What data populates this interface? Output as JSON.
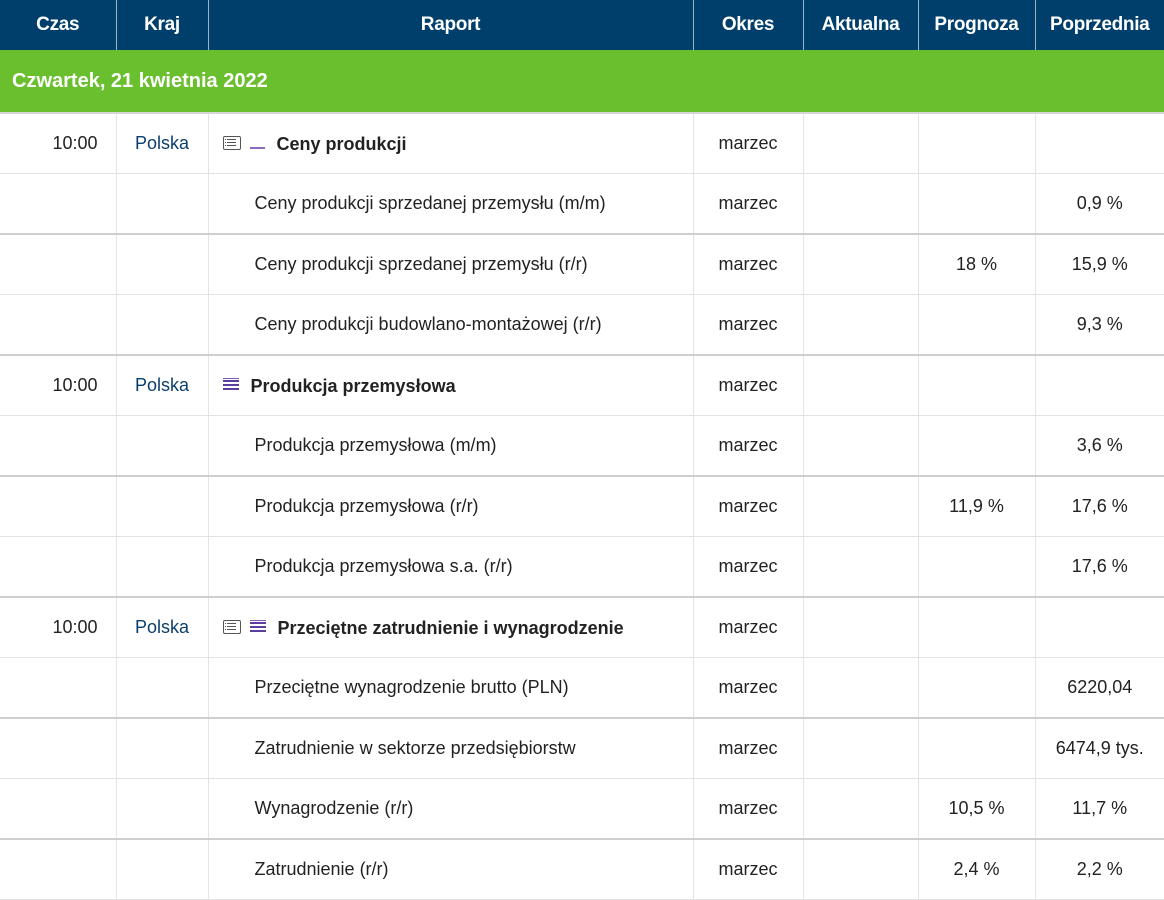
{
  "headers": {
    "czas": "Czas",
    "kraj": "Kraj",
    "raport": "Raport",
    "okres": "Okres",
    "aktualna": "Aktualna",
    "prognoza": "Prognoza",
    "poprzednia": "Poprzednia"
  },
  "date_label": "Czwartek, 21 kwietnia 2022",
  "rows": [
    {
      "czas": "10:00",
      "kraj": "Polska",
      "raport": "Ceny produkcji",
      "okres": "marzec",
      "aktualna": "",
      "prognoza": "",
      "poprzednia": "",
      "main": true,
      "icons": [
        "list-icon",
        "importance-low-icon"
      ]
    },
    {
      "czas": "",
      "kraj": "",
      "raport": "Ceny produkcji sprzedanej przemysłu (m/m)",
      "okres": "marzec",
      "aktualna": "",
      "prognoza": "",
      "poprzednia": "0,9 %"
    },
    {
      "czas": "",
      "kraj": "",
      "raport": "Ceny produkcji sprzedanej przemysłu (r/r)",
      "okres": "marzec",
      "aktualna": "",
      "prognoza": "18 %",
      "poprzednia": "15,9 %"
    },
    {
      "czas": "",
      "kraj": "",
      "raport": "Ceny produkcji budowlano-montażowej (r/r)",
      "okres": "marzec",
      "aktualna": "",
      "prognoza": "",
      "poprzednia": "9,3 %"
    },
    {
      "czas": "10:00",
      "kraj": "Polska",
      "raport": "Produkcja przemysłowa",
      "okres": "marzec",
      "aktualna": "",
      "prognoza": "",
      "poprzednia": "",
      "main": true,
      "icons": [
        "importance-high-icon"
      ]
    },
    {
      "czas": "",
      "kraj": "",
      "raport": "Produkcja przemysłowa (m/m)",
      "okres": "marzec",
      "aktualna": "",
      "prognoza": "",
      "poprzednia": "3,6 %"
    },
    {
      "czas": "",
      "kraj": "",
      "raport": "Produkcja przemysłowa (r/r)",
      "okres": "marzec",
      "aktualna": "",
      "prognoza": "11,9 %",
      "poprzednia": "17,6 %"
    },
    {
      "czas": "",
      "kraj": "",
      "raport": "Produkcja przemysłowa s.a. (r/r)",
      "okres": "marzec",
      "aktualna": "",
      "prognoza": "",
      "poprzednia": "17,6 %"
    },
    {
      "czas": "10:00",
      "kraj": "Polska",
      "raport": "Przeciętne zatrudnienie i wynagrodzenie",
      "okres": "marzec",
      "aktualna": "",
      "prognoza": "",
      "poprzednia": "",
      "main": true,
      "icons": [
        "list-icon",
        "importance-high-icon"
      ]
    },
    {
      "czas": "",
      "kraj": "",
      "raport": "Przeciętne wynagrodzenie brutto (PLN)",
      "okres": "marzec",
      "aktualna": "",
      "prognoza": "",
      "poprzednia": "6220,04"
    },
    {
      "czas": "",
      "kraj": "",
      "raport": "Zatrudnienie w sektorze przedsiębiorstw",
      "okres": "marzec",
      "aktualna": "",
      "prognoza": "",
      "poprzednia": "6474,9 tys."
    },
    {
      "czas": "",
      "kraj": "",
      "raport": "Wynagrodzenie (r/r)",
      "okres": "marzec",
      "aktualna": "",
      "prognoza": "10,5 %",
      "poprzednia": "11,7 %"
    },
    {
      "czas": "",
      "kraj": "",
      "raport": "Zatrudnienie (r/r)",
      "okres": "marzec",
      "aktualna": "",
      "prognoza": "2,4 %",
      "poprzednia": "2,2 %"
    }
  ],
  "colors": {
    "header_bg": "#003f6b",
    "date_bg": "#6abf2e",
    "country_text": "#0b3f6b"
  }
}
